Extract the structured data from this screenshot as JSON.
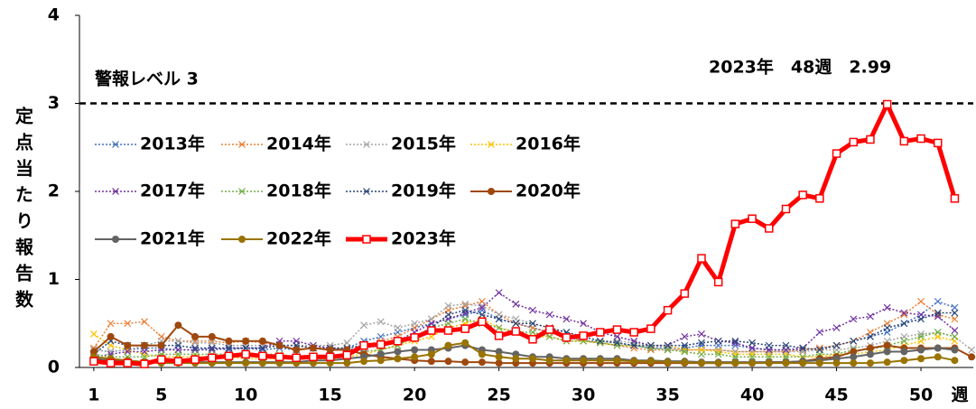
{
  "chart_data": {
    "type": "line",
    "y_label": "定点当たり報告数",
    "x_label": "週",
    "threshold": 3,
    "threshold_label": "警報レベル 3",
    "annotation": "2023年　48週　2.99",
    "x": [
      1,
      2,
      3,
      4,
      5,
      6,
      7,
      8,
      9,
      10,
      11,
      12,
      13,
      14,
      15,
      16,
      17,
      18,
      19,
      20,
      21,
      22,
      23,
      24,
      25,
      26,
      27,
      28,
      29,
      30,
      31,
      32,
      33,
      34,
      35,
      36,
      37,
      38,
      39,
      40,
      41,
      42,
      43,
      44,
      45,
      46,
      47,
      48,
      49,
      50,
      51,
      52,
      53
    ],
    "xlim": [
      0.15,
      53.1
    ],
    "xticks": [
      1,
      5,
      10,
      15,
      20,
      25,
      30,
      35,
      40,
      45,
      50
    ],
    "ylim": [
      0,
      4
    ],
    "yticks": [
      0,
      1,
      2,
      3,
      4
    ],
    "series": [
      {
        "name": "2013年",
        "color": "#4472c4",
        "line_style": "dotted",
        "marker": "x",
        "values": [
          0.2,
          0.18,
          0.2,
          0.22,
          0.22,
          0.2,
          0.2,
          0.22,
          0.2,
          0.22,
          0.2,
          0.22,
          0.2,
          0.22,
          0.2,
          0.22,
          0.3,
          0.35,
          0.4,
          0.45,
          0.5,
          0.55,
          0.6,
          0.65,
          0.55,
          0.5,
          0.45,
          0.4,
          0.35,
          0.3,
          0.3,
          0.28,
          0.25,
          0.22,
          0.22,
          0.22,
          0.25,
          0.25,
          0.25,
          0.22,
          0.2,
          0.2,
          0.2,
          0.22,
          0.25,
          0.3,
          0.35,
          0.4,
          0.5,
          0.6,
          0.75,
          0.68,
          null
        ]
      },
      {
        "name": "2014年",
        "color": "#ed7d31",
        "line_style": "dotted",
        "marker": "x",
        "values": [
          0.22,
          0.5,
          0.5,
          0.52,
          0.35,
          0.3,
          0.3,
          0.3,
          0.28,
          0.3,
          0.28,
          0.25,
          0.25,
          0.22,
          0.22,
          0.22,
          0.25,
          0.3,
          0.35,
          0.45,
          0.55,
          0.65,
          0.7,
          0.75,
          0.6,
          0.5,
          0.45,
          0.4,
          0.35,
          0.3,
          0.28,
          0.25,
          0.22,
          0.2,
          0.2,
          0.2,
          0.2,
          0.2,
          0.18,
          0.18,
          0.18,
          0.18,
          0.2,
          0.22,
          0.25,
          0.3,
          0.4,
          0.5,
          0.6,
          0.75,
          0.6,
          0.55,
          null
        ]
      },
      {
        "name": "2015年",
        "color": "#a5a5a5",
        "line_style": "dotted",
        "marker": "x",
        "values": [
          0.2,
          0.18,
          0.2,
          0.25,
          0.3,
          0.3,
          0.28,
          0.28,
          0.25,
          0.25,
          0.25,
          0.25,
          0.25,
          0.25,
          0.25,
          0.28,
          0.48,
          0.52,
          0.45,
          0.5,
          0.55,
          0.7,
          0.72,
          0.7,
          0.6,
          0.55,
          0.5,
          0.45,
          0.4,
          0.35,
          0.3,
          0.3,
          0.28,
          0.25,
          0.22,
          0.2,
          0.2,
          0.2,
          0.18,
          0.18,
          0.18,
          0.18,
          0.18,
          0.2,
          0.2,
          0.22,
          0.25,
          0.3,
          0.35,
          0.38,
          0.4,
          0.35,
          0.2
        ]
      },
      {
        "name": "2016年",
        "color": "#ffc000",
        "line_style": "dotted",
        "marker": "x",
        "values": [
          0.38,
          0.25,
          0.2,
          0.15,
          0.12,
          0.12,
          0.12,
          0.12,
          0.12,
          0.1,
          0.1,
          0.1,
          0.1,
          0.1,
          0.1,
          0.12,
          0.15,
          0.2,
          0.25,
          0.3,
          0.35,
          0.45,
          0.5,
          0.55,
          0.45,
          0.4,
          0.35,
          0.35,
          0.3,
          0.3,
          0.28,
          0.25,
          0.25,
          0.25,
          0.25,
          0.2,
          0.2,
          0.18,
          0.15,
          0.15,
          0.15,
          0.15,
          0.12,
          0.12,
          0.15,
          0.15,
          0.18,
          0.2,
          0.25,
          0.3,
          0.35,
          0.3,
          null
        ]
      },
      {
        "name": "2017年",
        "color": "#7030a0",
        "line_style": "dotted",
        "marker": "x",
        "values": [
          0.12,
          0.15,
          0.18,
          0.18,
          0.2,
          0.2,
          0.2,
          0.2,
          0.22,
          0.22,
          0.22,
          0.3,
          0.3,
          0.25,
          0.22,
          0.2,
          0.22,
          0.25,
          0.3,
          0.4,
          0.5,
          0.55,
          0.62,
          0.68,
          0.85,
          0.72,
          0.65,
          0.6,
          0.55,
          0.5,
          0.4,
          0.35,
          0.3,
          0.25,
          0.25,
          0.35,
          0.38,
          0.3,
          0.28,
          0.22,
          0.2,
          0.2,
          0.22,
          0.4,
          0.45,
          0.55,
          0.58,
          0.68,
          0.62,
          0.6,
          0.58,
          0.42,
          null
        ]
      },
      {
        "name": "2018年",
        "color": "#70ad47",
        "line_style": "dotted",
        "marker": "x",
        "values": [
          0.15,
          0.12,
          0.12,
          0.12,
          0.15,
          0.15,
          0.15,
          0.15,
          0.15,
          0.15,
          0.15,
          0.15,
          0.12,
          0.12,
          0.12,
          0.15,
          0.18,
          0.2,
          0.25,
          0.35,
          0.45,
          0.5,
          0.55,
          0.5,
          0.45,
          0.4,
          0.4,
          0.35,
          0.3,
          0.3,
          0.28,
          0.25,
          0.25,
          0.22,
          0.2,
          0.18,
          0.15,
          0.15,
          0.12,
          0.12,
          0.12,
          0.12,
          0.12,
          0.15,
          0.15,
          0.2,
          0.2,
          0.25,
          0.3,
          0.35,
          0.4,
          0.35,
          null
        ]
      },
      {
        "name": "2019年",
        "color": "#264478",
        "line_style": "dotted",
        "marker": "x",
        "values": [
          0.15,
          0.3,
          0.25,
          0.25,
          0.25,
          0.25,
          0.22,
          0.22,
          0.22,
          0.22,
          0.22,
          0.25,
          0.25,
          0.22,
          0.22,
          0.22,
          0.25,
          0.25,
          0.3,
          0.35,
          0.45,
          0.6,
          0.65,
          0.6,
          0.55,
          0.5,
          0.5,
          0.45,
          0.4,
          0.35,
          0.3,
          0.28,
          0.25,
          0.25,
          0.25,
          0.25,
          0.28,
          0.3,
          0.3,
          0.28,
          0.25,
          0.25,
          0.22,
          0.2,
          0.25,
          0.3,
          0.35,
          0.45,
          0.5,
          0.55,
          0.62,
          0.62,
          null
        ]
      },
      {
        "name": "2020年",
        "color": "#9e480e",
        "line_style": "solid",
        "marker": "circle",
        "values": [
          0.18,
          0.35,
          0.25,
          0.25,
          0.25,
          0.48,
          0.35,
          0.35,
          0.3,
          0.3,
          0.3,
          0.25,
          0.2,
          0.22,
          0.2,
          0.2,
          0.15,
          0.12,
          0.1,
          0.08,
          0.07,
          0.07,
          0.06,
          0.06,
          0.05,
          0.05,
          0.05,
          0.05,
          0.05,
          0.05,
          0.05,
          0.05,
          0.05,
          0.05,
          0.05,
          0.05,
          0.05,
          0.05,
          0.05,
          0.05,
          0.06,
          0.06,
          0.07,
          0.1,
          0.12,
          0.18,
          0.22,
          0.25,
          0.22,
          0.22,
          0.22,
          0.22,
          0.12
        ]
      },
      {
        "name": "2021年",
        "color": "#636363",
        "line_style": "solid",
        "marker": "circle",
        "values": [
          0.1,
          0.08,
          0.08,
          0.06,
          0.06,
          0.06,
          0.06,
          0.06,
          0.06,
          0.06,
          0.06,
          0.06,
          0.06,
          0.08,
          0.08,
          0.1,
          0.12,
          0.15,
          0.18,
          0.2,
          0.2,
          0.22,
          0.25,
          0.2,
          0.18,
          0.15,
          0.12,
          0.12,
          0.1,
          0.1,
          0.1,
          0.1,
          0.08,
          0.08,
          0.07,
          0.07,
          0.06,
          0.06,
          0.06,
          0.06,
          0.06,
          0.06,
          0.07,
          0.08,
          0.1,
          0.12,
          0.15,
          0.18,
          0.18,
          0.2,
          0.22,
          0.2,
          null
        ]
      },
      {
        "name": "2022年",
        "color": "#997300",
        "line_style": "solid",
        "marker": "circle",
        "values": [
          0.12,
          0.1,
          0.08,
          0.06,
          0.05,
          0.05,
          0.05,
          0.05,
          0.05,
          0.05,
          0.05,
          0.05,
          0.05,
          0.05,
          0.05,
          0.05,
          0.07,
          0.08,
          0.1,
          0.12,
          0.15,
          0.25,
          0.28,
          0.15,
          0.12,
          0.1,
          0.1,
          0.08,
          0.08,
          0.08,
          0.08,
          0.08,
          0.07,
          0.07,
          0.06,
          0.06,
          0.05,
          0.05,
          0.05,
          0.05,
          0.05,
          0.05,
          0.05,
          0.05,
          0.05,
          0.05,
          0.05,
          0.06,
          0.08,
          0.1,
          0.12,
          0.08,
          null
        ]
      },
      {
        "name": "2023年",
        "color": "#ff0000",
        "line_style": "bold",
        "marker": "square",
        "values": [
          0.07,
          0.05,
          0.05,
          0.04,
          0.09,
          0.07,
          0.09,
          0.11,
          0.13,
          0.15,
          0.13,
          0.12,
          0.11,
          0.12,
          0.12,
          0.14,
          0.25,
          0.26,
          0.3,
          0.34,
          0.42,
          0.42,
          0.44,
          0.52,
          0.36,
          0.41,
          0.32,
          0.43,
          0.34,
          0.36,
          0.4,
          0.43,
          0.4,
          0.44,
          0.65,
          0.84,
          1.24,
          0.97,
          1.63,
          1.69,
          1.58,
          1.8,
          1.96,
          1.92,
          2.43,
          2.56,
          2.59,
          2.99,
          2.57,
          2.6,
          2.55,
          1.92,
          null
        ]
      }
    ]
  }
}
